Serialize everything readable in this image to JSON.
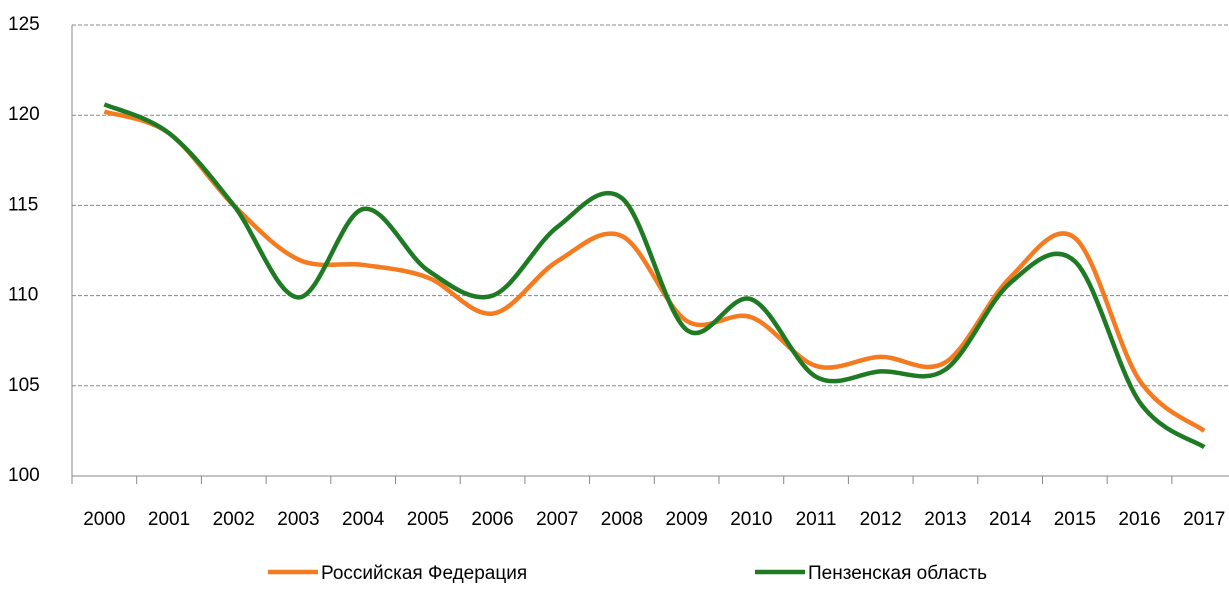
{
  "chart_data": {
    "type": "line",
    "categories": [
      "2000",
      "2001",
      "2002",
      "2003",
      "2004",
      "2005",
      "2006",
      "2007",
      "2008",
      "2009",
      "2010",
      "2011",
      "2012",
      "2013",
      "2014",
      "2015",
      "2016",
      "2017"
    ],
    "series": [
      {
        "name": "Российская Федерация",
        "color": "#f47b20",
        "values": [
          120.2,
          119.0,
          115.0,
          112.0,
          111.7,
          111.0,
          109.0,
          111.9,
          113.3,
          108.6,
          108.8,
          106.1,
          106.6,
          106.3,
          111.0,
          113.2,
          105.3,
          102.5
        ]
      },
      {
        "name": "Пензенская область",
        "color": "#1e7b24",
        "values": [
          120.6,
          119.0,
          115.0,
          109.9,
          114.8,
          111.4,
          110.0,
          113.8,
          115.4,
          108.1,
          109.8,
          105.5,
          105.8,
          105.9,
          110.7,
          111.9,
          104.1,
          101.6
        ]
      }
    ],
    "ylim": [
      100,
      125
    ],
    "yticks": [
      100,
      105,
      110,
      115,
      120,
      125
    ],
    "grid": true
  }
}
